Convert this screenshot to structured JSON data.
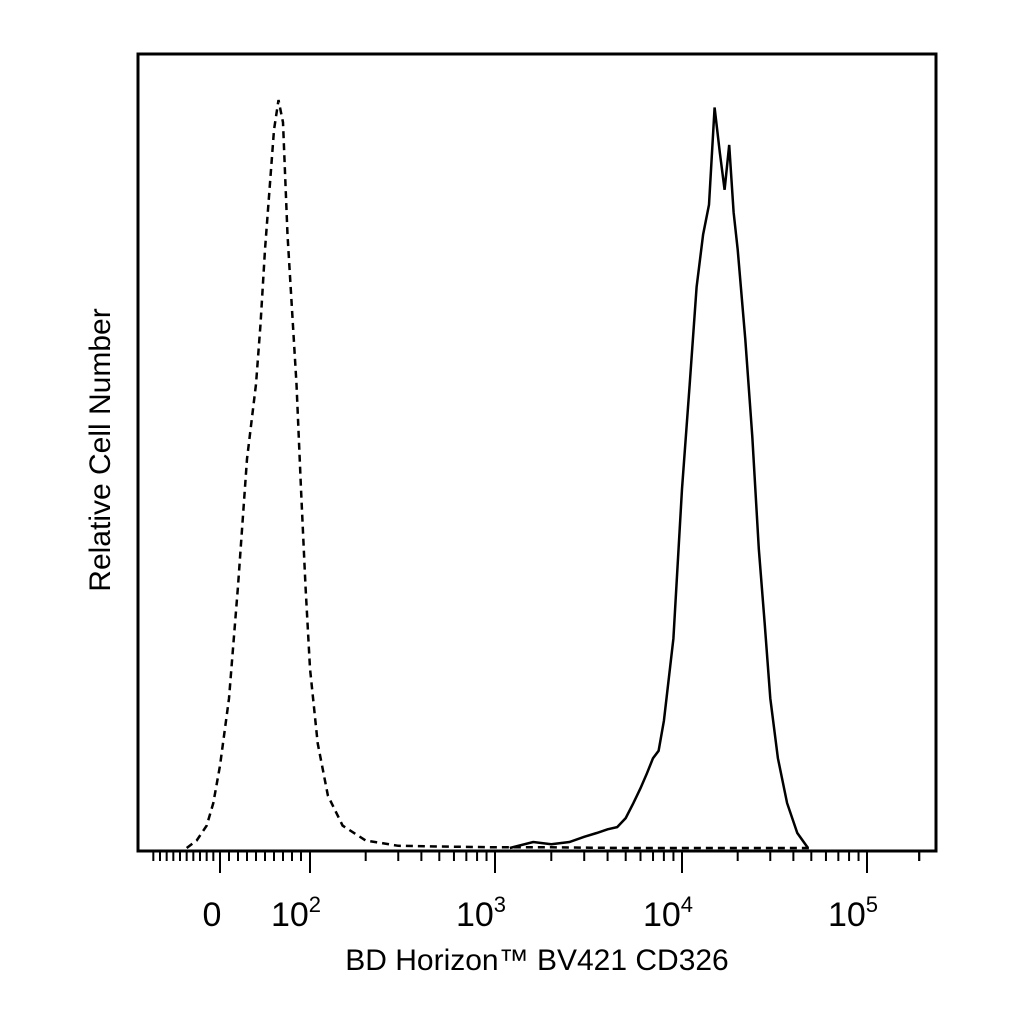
{
  "chart_data": {
    "type": "line",
    "title": "",
    "xlabel": "BD Horizon™ BV421 CD326",
    "ylabel": "Relative Cell Number",
    "x_scale": "biexponential",
    "xlim": [
      -120,
      250000
    ],
    "ylim": [
      0,
      100
    ],
    "grid": false,
    "legend": "none",
    "x_tick_labels": [
      {
        "value": 0,
        "base": "0",
        "exp": ""
      },
      {
        "value": 100,
        "base": "10",
        "exp": "2"
      },
      {
        "value": 1000,
        "base": "10",
        "exp": "3"
      },
      {
        "value": 10000,
        "base": "10",
        "exp": "4"
      },
      {
        "value": 100000,
        "base": "10",
        "exp": "5"
      }
    ],
    "series": [
      {
        "style": "dashed",
        "x": [
          -50,
          -35,
          -20,
          -10,
          0,
          10,
          20,
          30,
          40,
          45,
          50,
          55,
          60,
          65,
          70,
          75,
          80,
          85,
          90,
          95,
          100,
          110,
          125,
          150,
          200,
          300,
          500,
          1000,
          2000,
          5000,
          50000
        ],
        "y": [
          0,
          1,
          3,
          6,
          11,
          20,
          35,
          52,
          62,
          70,
          80,
          88,
          96,
          100,
          97,
          82,
          72,
          62,
          48,
          35,
          24,
          14,
          7,
          3,
          1,
          0.3,
          0.2,
          0.1,
          0.1,
          0,
          0
        ]
      },
      {
        "style": "solid",
        "x": [
          1200,
          1600,
          2000,
          2500,
          3000,
          3500,
          4000,
          4500,
          5000,
          5500,
          6000,
          6500,
          7000,
          7500,
          8000,
          9000,
          10000,
          11000,
          12000,
          13000,
          14000,
          15000,
          16000,
          17000,
          18000,
          19000,
          20000,
          22000,
          24000,
          26000,
          28000,
          30000,
          33000,
          37000,
          42000,
          48000
        ],
        "y": [
          0,
          0.8,
          0.5,
          0.8,
          1.5,
          2,
          2.5,
          2.8,
          4,
          6,
          8,
          10,
          12,
          13,
          17,
          28,
          48,
          62,
          75,
          82,
          86,
          99,
          93,
          88,
          94,
          85,
          80,
          68,
          55,
          40,
          30,
          20,
          12,
          6,
          2,
          0
        ]
      }
    ]
  }
}
